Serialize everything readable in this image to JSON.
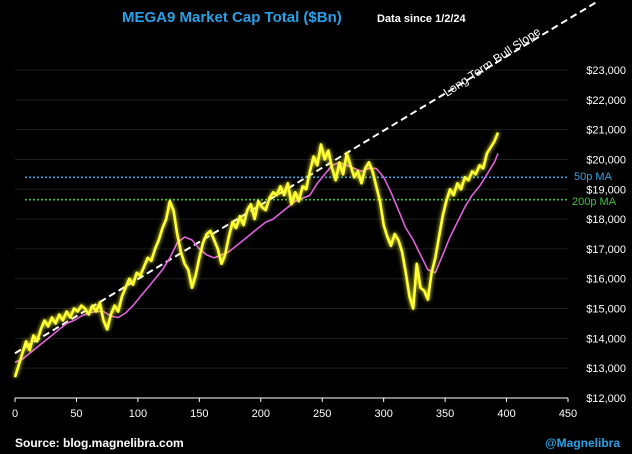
{
  "chart_data": {
    "type": "line",
    "title": "MEGA9 Market Cap Total ($Bn)",
    "subtitle": "Data since 1/2/24",
    "source": "Source: blog.magnelibra.com",
    "handle": "@Magnelibra",
    "xlim": [
      0,
      450
    ],
    "ylim": [
      12000,
      23000
    ],
    "x_ticks": [
      "0",
      "50",
      "100",
      "150",
      "200",
      "250",
      "300",
      "350",
      "400",
      "450"
    ],
    "y_ticks": [
      "$12,000",
      "$13,000",
      "$14,000",
      "$15,000",
      "$16,000",
      "$17,000",
      "$18,000",
      "$19,000",
      "$20,000",
      "$21,000",
      "$22,000",
      "$23,000"
    ],
    "colors": {
      "price": "#ffff33",
      "ma": "#e060e0",
      "trend": "#ffffff",
      "ma50": "#3aa0e0",
      "ma200": "#3fc23f",
      "title": "#2aa0e6"
    },
    "series": [
      {
        "x": [
          0,
          3,
          6,
          9,
          12,
          15,
          18,
          21,
          24,
          27,
          30,
          33,
          36,
          39,
          42,
          45,
          48,
          51,
          54,
          57,
          60,
          63,
          66,
          69,
          72,
          75,
          78,
          81,
          84,
          87,
          90,
          93,
          96,
          99,
          102,
          105,
          108,
          111,
          114,
          117,
          120,
          123,
          126,
          129,
          132,
          135,
          138,
          141,
          144,
          147,
          150,
          153,
          156,
          159,
          162,
          165,
          168,
          171,
          174,
          177,
          180,
          183,
          186,
          189,
          192,
          195,
          198,
          201,
          204,
          207,
          210,
          213,
          216,
          219,
          222,
          225,
          228,
          231,
          234,
          237,
          240,
          243,
          246,
          249,
          252,
          255,
          258,
          261,
          264,
          267,
          270,
          273,
          276,
          279,
          282,
          285,
          288,
          291,
          294,
          297,
          300,
          303,
          306,
          309,
          312,
          315,
          318,
          321,
          324,
          327,
          330,
          333,
          336,
          339,
          342,
          345,
          348,
          351,
          354,
          357,
          360,
          363,
          366,
          369,
          372,
          375,
          378,
          381,
          384,
          387,
          390,
          393
        ],
        "values": [
          12700,
          13100,
          13500,
          13900,
          13600,
          14100,
          13900,
          14300,
          14600,
          14400,
          14700,
          14500,
          14800,
          14600,
          14900,
          14700,
          15000,
          14900,
          15100,
          15000,
          14800,
          15100,
          14900,
          15200,
          14600,
          14300,
          14800,
          15100,
          14900,
          15400,
          15700,
          16000,
          15800,
          16200,
          16100,
          16400,
          16700,
          16600,
          17000,
          17300,
          17700,
          18000,
          18600,
          18300,
          17500,
          16900,
          16500,
          16300,
          15700,
          16100,
          16700,
          17200,
          17500,
          17600,
          17300,
          17000,
          16500,
          16800,
          17400,
          17900,
          17700,
          18100,
          17800,
          18300,
          18500,
          18000,
          18600,
          18400,
          18300,
          18700,
          18900,
          18800,
          19100,
          18800,
          19200,
          18500,
          18900,
          18600,
          19100,
          19000,
          19600,
          20100,
          19800,
          20500,
          20000,
          20300,
          19700,
          19300,
          19900,
          19500,
          20200,
          19800,
          19400,
          19600,
          19200,
          19700,
          19900,
          19600,
          19100,
          18600,
          17800,
          17400,
          17100,
          17500,
          17300,
          16900,
          16200,
          15400,
          15000,
          16500,
          15700,
          15600,
          15300,
          16200,
          16700,
          17400,
          18100,
          18600,
          19000,
          18800,
          19200,
          19000,
          19400,
          19300,
          19600,
          19500,
          19800,
          19700,
          20200,
          20400,
          20600,
          20900
        ]
      },
      {
        "x": [
          0,
          6,
          12,
          18,
          24,
          30,
          36,
          42,
          48,
          54,
          60,
          66,
          72,
          78,
          84,
          90,
          96,
          102,
          108,
          114,
          120,
          126,
          132,
          138,
          144,
          150,
          156,
          162,
          168,
          174,
          180,
          186,
          192,
          198,
          204,
          210,
          216,
          222,
          228,
          234,
          240,
          246,
          252,
          258,
          264,
          270,
          276,
          282,
          288,
          294,
          300,
          306,
          312,
          318,
          324,
          330,
          336,
          342,
          348,
          354,
          360,
          366,
          372,
          378,
          384,
          390,
          393
        ],
        "values": [
          13200,
          13300,
          13500,
          13700,
          13900,
          14100,
          14300,
          14500,
          14600,
          14750,
          14850,
          14900,
          14900,
          14750,
          14700,
          14850,
          15100,
          15400,
          15700,
          16000,
          16300,
          16700,
          17200,
          17400,
          17300,
          17000,
          16800,
          16700,
          16800,
          16900,
          17100,
          17300,
          17500,
          17700,
          17900,
          18000,
          18200,
          18400,
          18600,
          18700,
          18800,
          19200,
          19500,
          19800,
          19900,
          19800,
          19700,
          19600,
          19700,
          19700,
          19400,
          18900,
          18300,
          17700,
          17300,
          16800,
          16300,
          16200,
          16800,
          17400,
          17900,
          18400,
          18800,
          19100,
          19500,
          19900,
          20200
        ]
      },
      {
        "x": [
          0,
          450
        ],
        "values": [
          13500,
          24700
        ]
      }
    ],
    "hlines": [
      {
        "name": "50p MA",
        "y": 19400
      },
      {
        "name": "200p MA",
        "y": 18650
      }
    ],
    "annotations": [
      {
        "text": "Long Term Bull Slope"
      }
    ]
  }
}
